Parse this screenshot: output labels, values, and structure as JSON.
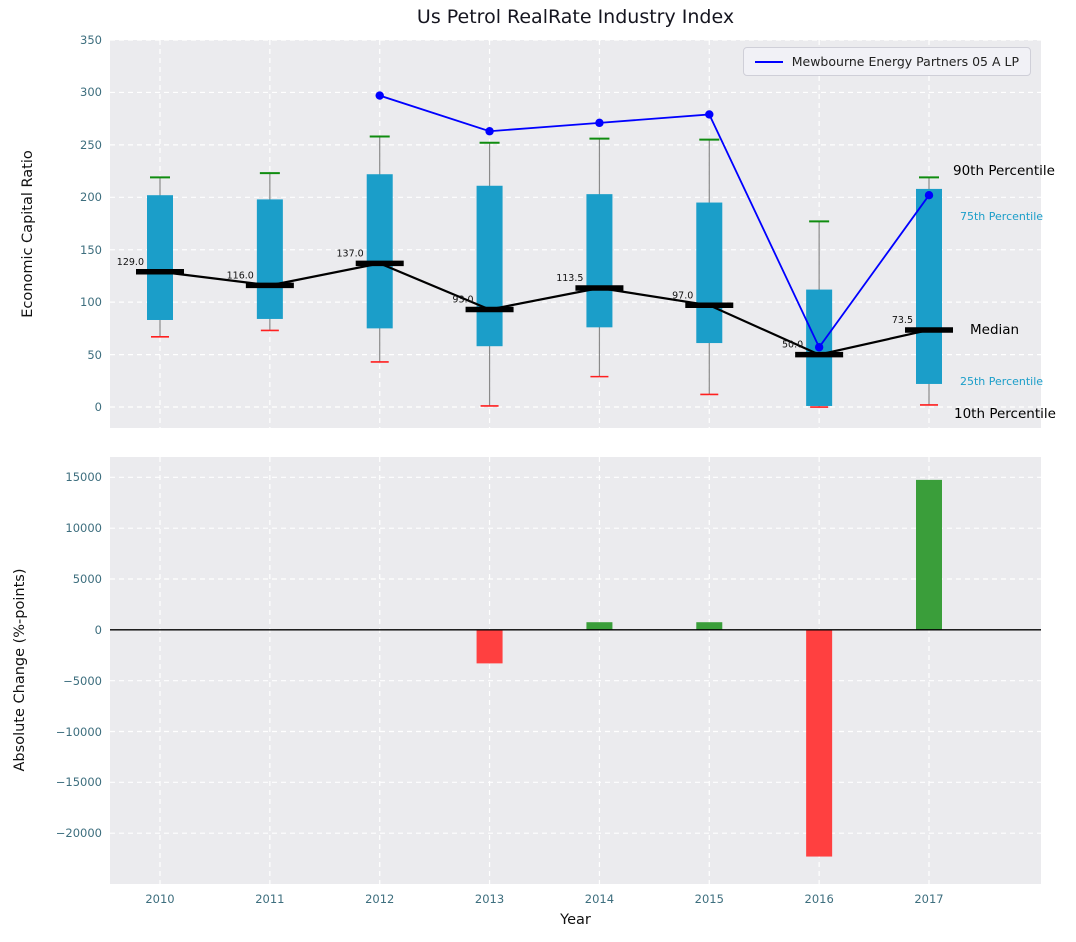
{
  "figure_title": "Us Petrol RealRate Industry Index",
  "xlabel": "Year",
  "colors": {
    "box": "#1b9ec9",
    "company_line": "#0000ff",
    "p90_cap": "#0f8c0f",
    "p10_cap": "#ff1f1f",
    "positive": "#3a9e3a",
    "negative": "#ff4040",
    "background": "#ebebee",
    "tick": "#3d6e7e",
    "annotation_cyan": "#1b9ec9"
  },
  "chart_data": [
    {
      "type": "boxplot+line",
      "panel": "top",
      "title": "Us Petrol RealRate Industry Index",
      "ylabel": "Economic Capital Ratio",
      "ylim": [
        -20,
        350
      ],
      "yticks": [
        0,
        50,
        100,
        150,
        200,
        250,
        300,
        350
      ],
      "grid": true,
      "categories": [
        "2010",
        "2011",
        "2012",
        "2013",
        "2014",
        "2015",
        "2016",
        "2017"
      ],
      "legend": {
        "position": "upper right",
        "entries": [
          {
            "label": "Mewbourne Energy Partners 05 A LP",
            "color": "#0000ff"
          }
        ]
      },
      "box_series": {
        "p10": [
          67,
          73,
          43,
          1,
          29,
          12,
          0,
          2
        ],
        "p25": [
          83,
          84,
          75,
          58,
          76,
          61,
          1,
          22
        ],
        "median": [
          129.0,
          116.0,
          137.0,
          93.0,
          113.5,
          97.0,
          50.0,
          73.5
        ],
        "p75": [
          202,
          198,
          222,
          211,
          203,
          195,
          112,
          208
        ],
        "p90": [
          219,
          223,
          258,
          252,
          256,
          255,
          177,
          219
        ]
      },
      "median_labels": [
        "129.0",
        "116.0",
        "137.0",
        "93.0",
        "113.5",
        "97.0",
        "50.0",
        "73.5"
      ],
      "line_series": {
        "name": "Mewbourne Energy Partners 05 A LP",
        "x": [
          "2012",
          "2013",
          "2014",
          "2015",
          "2016",
          "2017"
        ],
        "values": [
          297,
          263,
          271,
          279,
          57,
          202
        ]
      },
      "percentile_annotations": [
        {
          "label": "90th Percentile",
          "color": "#000000"
        },
        {
          "label": "75th Percentile",
          "color": "#1b9ec9"
        },
        {
          "label": "Median",
          "color": "#000000"
        },
        {
          "label": "25th Percentile",
          "color": "#1b9ec9"
        },
        {
          "label": "10th Percentile",
          "color": "#000000"
        }
      ]
    },
    {
      "type": "bar",
      "panel": "bottom",
      "ylabel": "Absolute Change (%-points)",
      "xlabel": "Year",
      "ylim": [
        -25000,
        17000
      ],
      "yticks": [
        -20000,
        -15000,
        -10000,
        -5000,
        0,
        5000,
        10000,
        15000
      ],
      "grid": true,
      "zero_line": true,
      "categories": [
        "2010",
        "2011",
        "2012",
        "2013",
        "2014",
        "2015",
        "2016",
        "2017"
      ],
      "values": [
        0,
        0,
        0,
        -3300,
        750,
        750,
        -22300,
        14750
      ]
    }
  ]
}
